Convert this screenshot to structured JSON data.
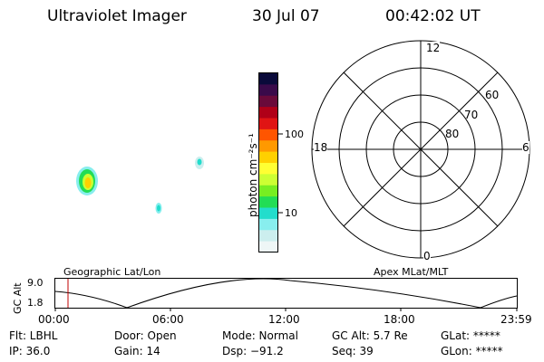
{
  "header": {
    "instrument": "Ultraviolet Imager",
    "date": "30 Jul 07",
    "time": "00:42:02 UT"
  },
  "colorbar": {
    "unit_label": "photon cm⁻²s⁻¹",
    "tick_labels": [
      "100",
      "10"
    ],
    "colors": [
      "#0a0a3a",
      "#3a0a4a",
      "#6a0a3a",
      "#b00018",
      "#e01414",
      "#ff5500",
      "#ff9900",
      "#ffd000",
      "#ffff33",
      "#ccff33",
      "#77ee22",
      "#22dd55",
      "#22ddcc",
      "#88eeee",
      "#cceeee",
      "#eef6f6"
    ]
  },
  "polar_plot": {
    "mlt_labels": {
      "top": "12",
      "left": "18",
      "right": "6",
      "bottom": "0"
    },
    "lat_labels": [
      "60",
      "70",
      "80"
    ]
  },
  "timeline": {
    "left_title": "Geographic Lat/Lon",
    "right_title": "Apex MLat/MLT",
    "y_axis_label": "GC Alt",
    "y_ticks": [
      "9.0",
      "1.8"
    ],
    "x_ticks": [
      "00:00",
      "06:00",
      "12:00",
      "18:00",
      "23:59"
    ]
  },
  "status": {
    "flt": "Flt: LBHL",
    "ip": "IP: 36.0",
    "door": "Door: Open",
    "gain": "Gain: 14",
    "mode": "Mode: Normal",
    "dsp": "Dsp:  −91.2",
    "gc_alt": "GC Alt: 5.7 Re",
    "seq": "Seq: 39",
    "glat": "GLat: *****",
    "glon": "GLon: *****"
  }
}
